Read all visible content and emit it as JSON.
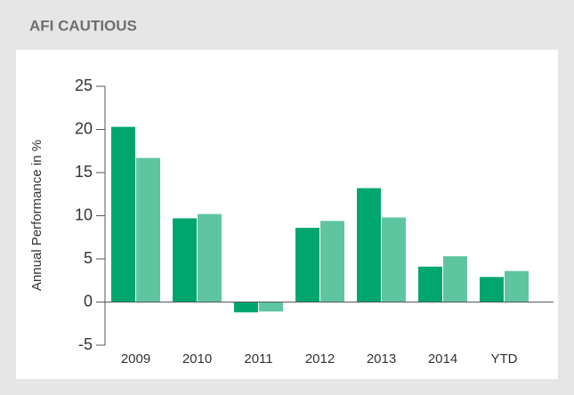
{
  "chart_data": {
    "type": "bar",
    "title": "AFI CAUTIOUS",
    "ylabel": "Annual Performance in %",
    "categories": [
      "2009",
      "2010",
      "2011",
      "2012",
      "2013",
      "2014",
      "YTD"
    ],
    "series": [
      {
        "color": "#00a66e",
        "values": [
          20.3,
          9.7,
          -1.2,
          8.6,
          13.2,
          4.1,
          2.9
        ]
      },
      {
        "color": "#5fc5a0",
        "values": [
          16.7,
          10.2,
          -1.1,
          9.4,
          9.8,
          5.3,
          3.6
        ]
      }
    ],
    "ylim": [
      -5,
      25
    ],
    "yticks": [
      -5,
      0,
      5,
      10,
      15,
      20,
      25
    ]
  }
}
